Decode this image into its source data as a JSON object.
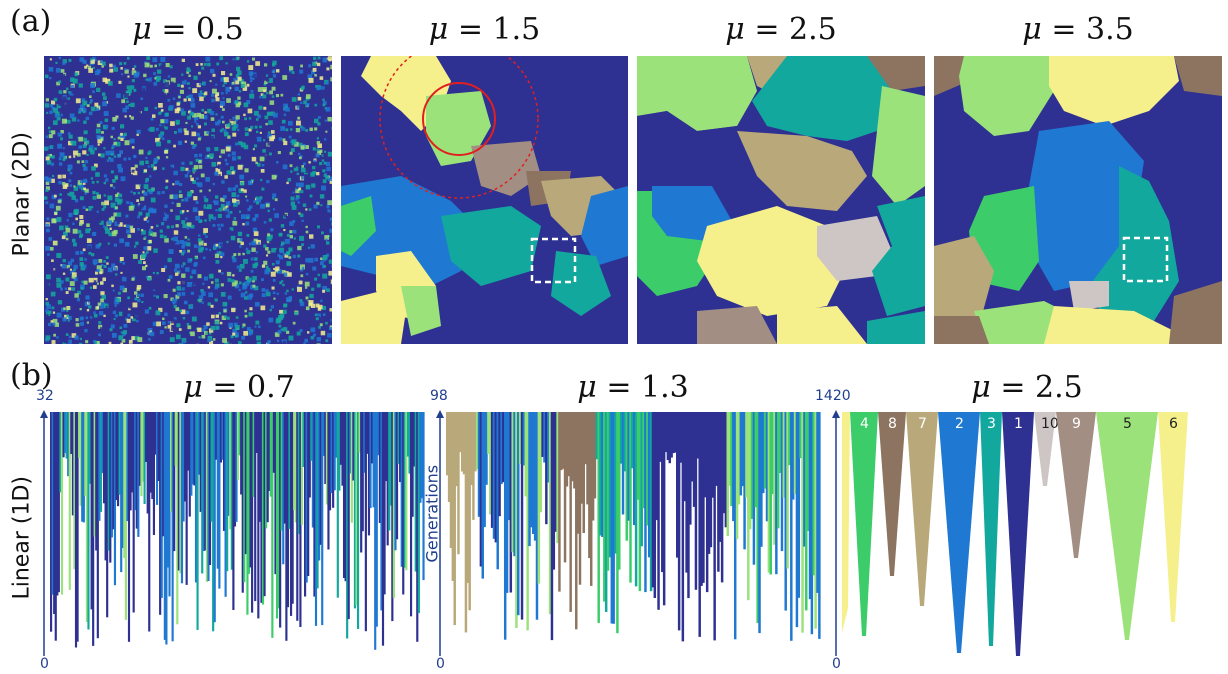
{
  "panel_a": {
    "label": "(a)",
    "row_label": "Planar (2D)",
    "mu_symbol": "μ",
    "panels": [
      {
        "mu": "= 0.5"
      },
      {
        "mu": "= 1.5"
      },
      {
        "mu": "= 2.5"
      },
      {
        "mu": "= 3.5"
      }
    ]
  },
  "panel_b": {
    "label": "(b)",
    "row_label": "Linear (1D)",
    "axis_label": "Generations",
    "mu_symbol": "μ",
    "panels": [
      {
        "mu": "= 0.7",
        "y_top": "32",
        "y_bottom": "0"
      },
      {
        "mu": "= 1.3",
        "y_top": "98",
        "y_bottom": "0"
      },
      {
        "mu": "= 2.5",
        "y_top": "1420",
        "y_bottom": "0"
      }
    ],
    "lineage_labels": [
      "4",
      "8",
      "7",
      "2",
      "3",
      "1",
      "10",
      "9",
      "5",
      "6"
    ]
  },
  "colors": {
    "navy": "#2e3192",
    "blue": "#1f78d1",
    "teal": "#13a89e",
    "green": "#3dcc6a",
    "lightgreen": "#9ce27a",
    "yellow": "#f6f08c",
    "tan": "#b9a97a",
    "brown": "#8c7460",
    "mauve": "#a38e84",
    "gray": "#cdc6c4",
    "axis": "#1f3f8f"
  }
}
